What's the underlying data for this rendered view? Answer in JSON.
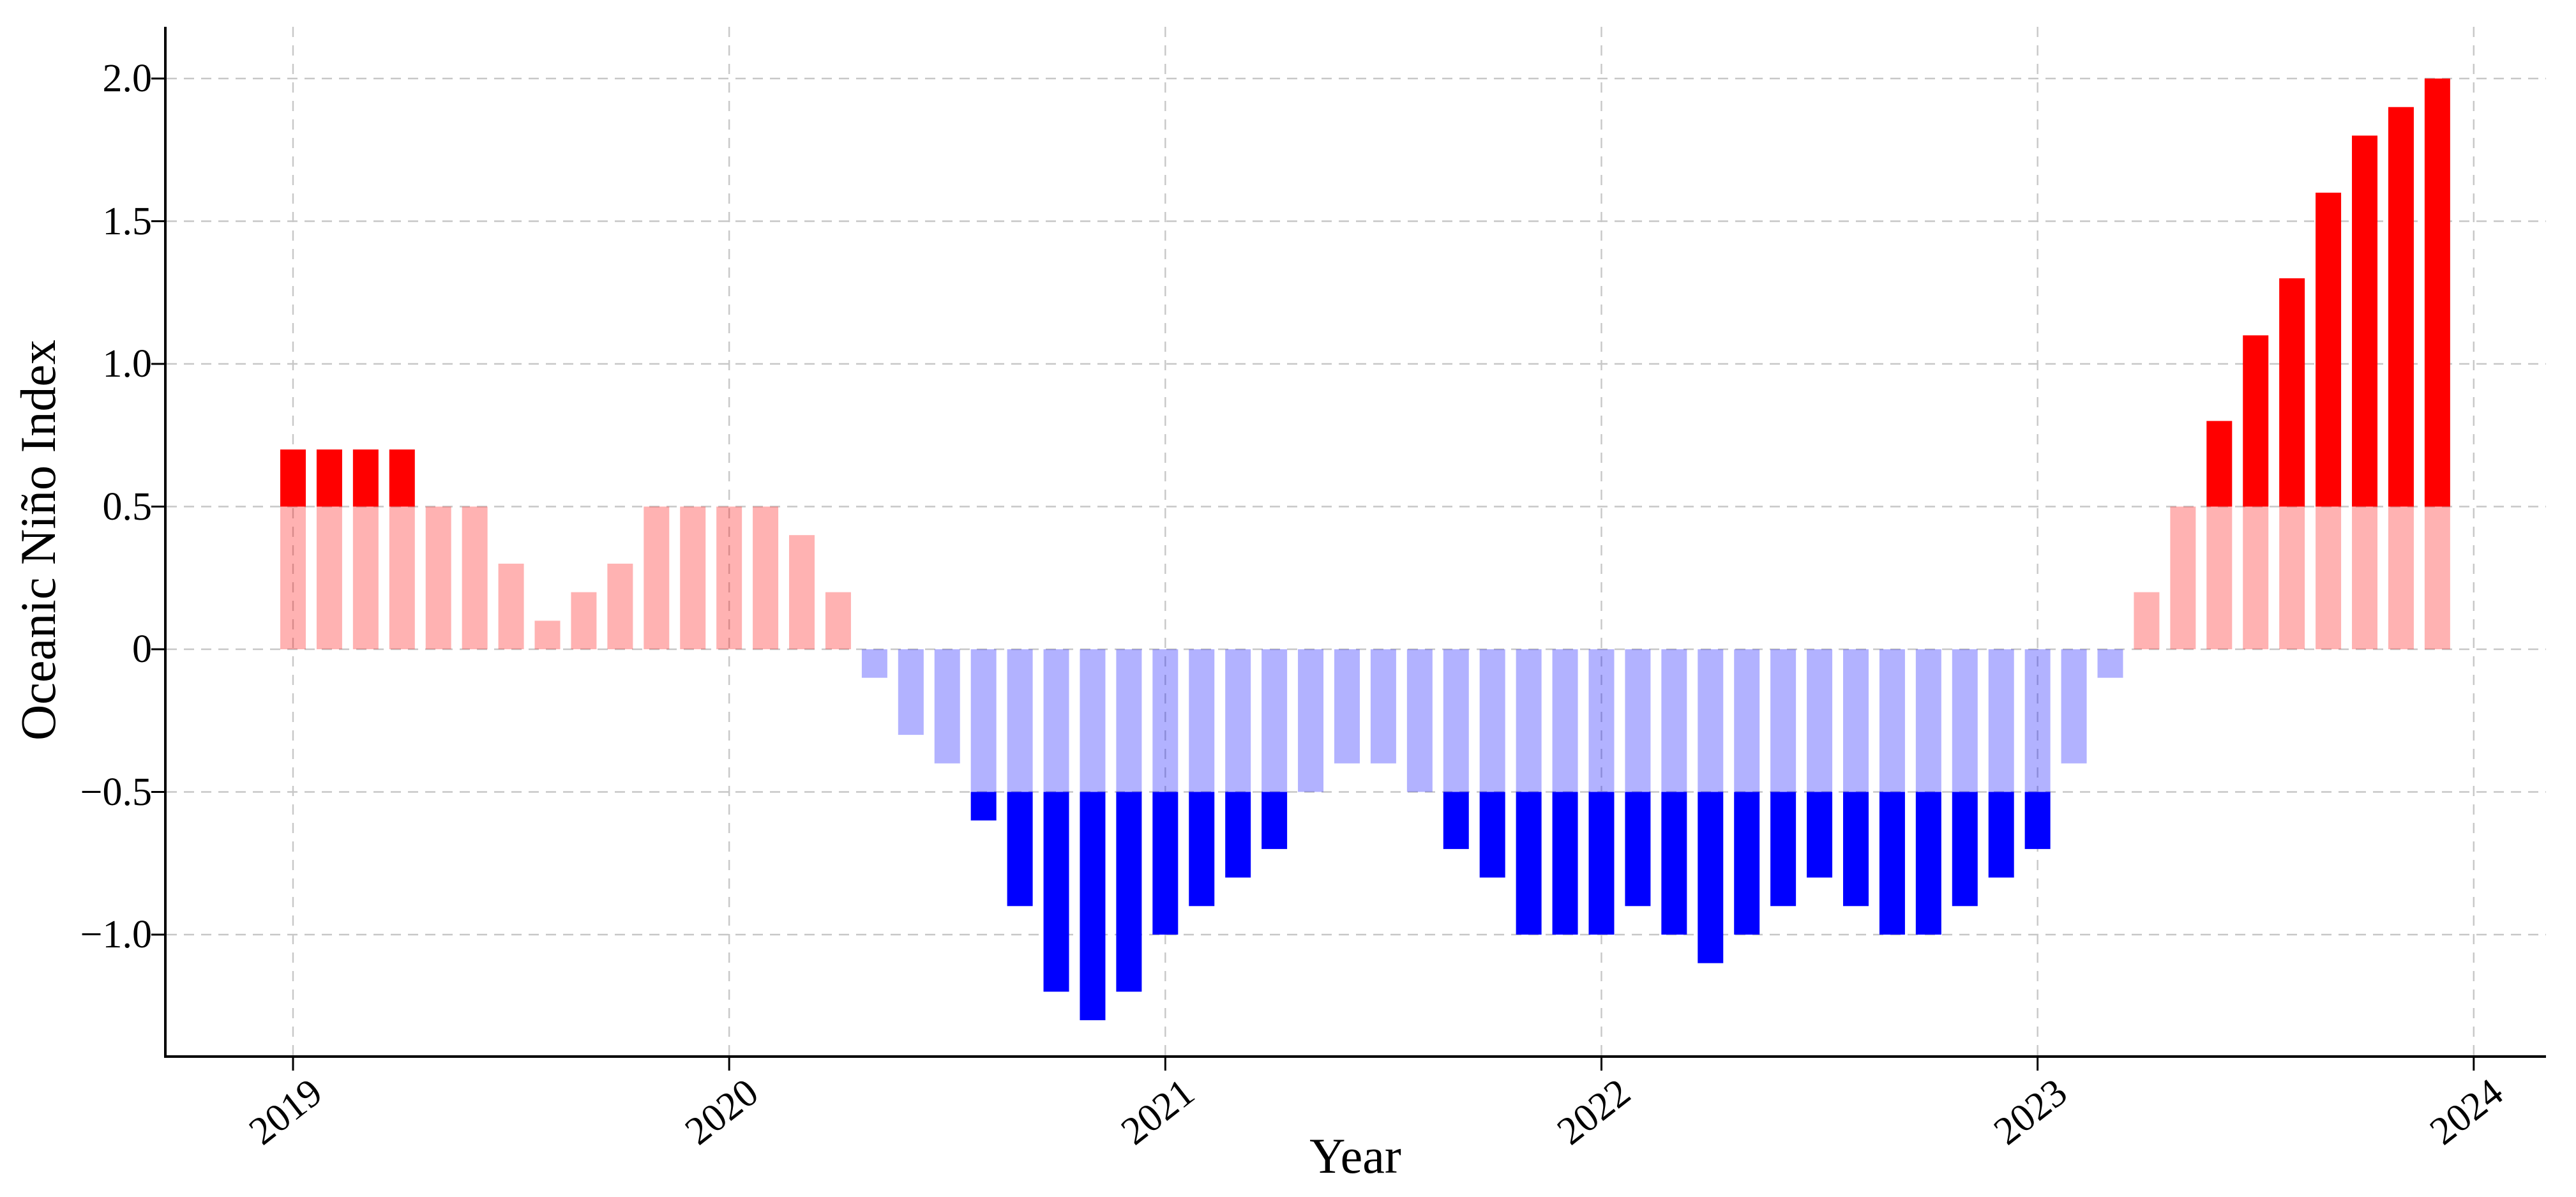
{
  "figure": {
    "background": "#ffffff",
    "text_color": "#000000"
  },
  "chart_data": {
    "type": "bar",
    "title": "",
    "xlabel": "Year",
    "ylabel": "Oceanic Niño Index",
    "grid": true,
    "legend": false,
    "threshold": 0.5,
    "ylim": [
      -1.42,
      2.17
    ],
    "x_start": "2019-01",
    "x_end": "2023-12",
    "categories": [
      "2019-01",
      "2019-02",
      "2019-03",
      "2019-04",
      "2019-05",
      "2019-06",
      "2019-07",
      "2019-08",
      "2019-09",
      "2019-10",
      "2019-11",
      "2019-12",
      "2020-01",
      "2020-02",
      "2020-03",
      "2020-04",
      "2020-05",
      "2020-06",
      "2020-07",
      "2020-08",
      "2020-09",
      "2020-10",
      "2020-11",
      "2020-12",
      "2021-01",
      "2021-02",
      "2021-03",
      "2021-04",
      "2021-05",
      "2021-06",
      "2021-07",
      "2021-08",
      "2021-09",
      "2021-10",
      "2021-11",
      "2021-12",
      "2022-01",
      "2022-02",
      "2022-03",
      "2022-04",
      "2022-05",
      "2022-06",
      "2022-07",
      "2022-08",
      "2022-09",
      "2022-10",
      "2022-11",
      "2022-12",
      "2023-01",
      "2023-02",
      "2023-03",
      "2023-04",
      "2023-05",
      "2023-06",
      "2023-07",
      "2023-08",
      "2023-09",
      "2023-10",
      "2023-11",
      "2023-12"
    ],
    "series": [
      {
        "name": "Oceanic Nino Index",
        "values": [
          0.7,
          0.7,
          0.7,
          0.7,
          0.5,
          0.5,
          0.3,
          0.1,
          0.2,
          0.3,
          0.5,
          0.5,
          0.5,
          0.5,
          0.4,
          0.2,
          -0.1,
          -0.3,
          -0.4,
          -0.6,
          -0.9,
          -1.2,
          -1.3,
          -1.2,
          -1.0,
          -0.9,
          -0.8,
          -0.7,
          -0.5,
          -0.4,
          -0.4,
          -0.5,
          -0.7,
          -0.8,
          -1.0,
          -1.0,
          -1.0,
          -0.9,
          -1.0,
          -1.1,
          -1.0,
          -0.9,
          -0.8,
          -0.9,
          -1.0,
          -1.0,
          -0.9,
          -0.8,
          -0.7,
          -0.4,
          -0.1,
          0.2,
          0.5,
          0.8,
          1.1,
          1.3,
          1.6,
          1.8,
          1.9,
          2.0
        ]
      }
    ],
    "yticks": [
      {
        "label": "2.0",
        "value": 2.0
      },
      {
        "label": "1.5",
        "value": 1.5
      },
      {
        "label": "1.0",
        "value": 1.0
      },
      {
        "label": "0.5",
        "value": 0.5
      },
      {
        "label": "0",
        "value": 0.0
      },
      {
        "label": "−0.5",
        "value": -0.5
      },
      {
        "label": "−1.0",
        "value": -1.0
      }
    ],
    "xticks": [
      {
        "label": "2019",
        "month_index": 0
      },
      {
        "label": "2020",
        "month_index": 12
      },
      {
        "label": "2021",
        "month_index": 24
      },
      {
        "label": "2022",
        "month_index": 36
      },
      {
        "label": "2023",
        "month_index": 48
      },
      {
        "label": "2024",
        "month_index": 60
      }
    ],
    "colors": {
      "positive_strong": "#ff0000",
      "positive_weak": "rgba(255,0,0,0.3)",
      "negative_strong": "#0000ff",
      "negative_weak": "rgba(0,0,255,0.3)",
      "grid": "#c7c7c7",
      "spine": "#000000"
    }
  }
}
